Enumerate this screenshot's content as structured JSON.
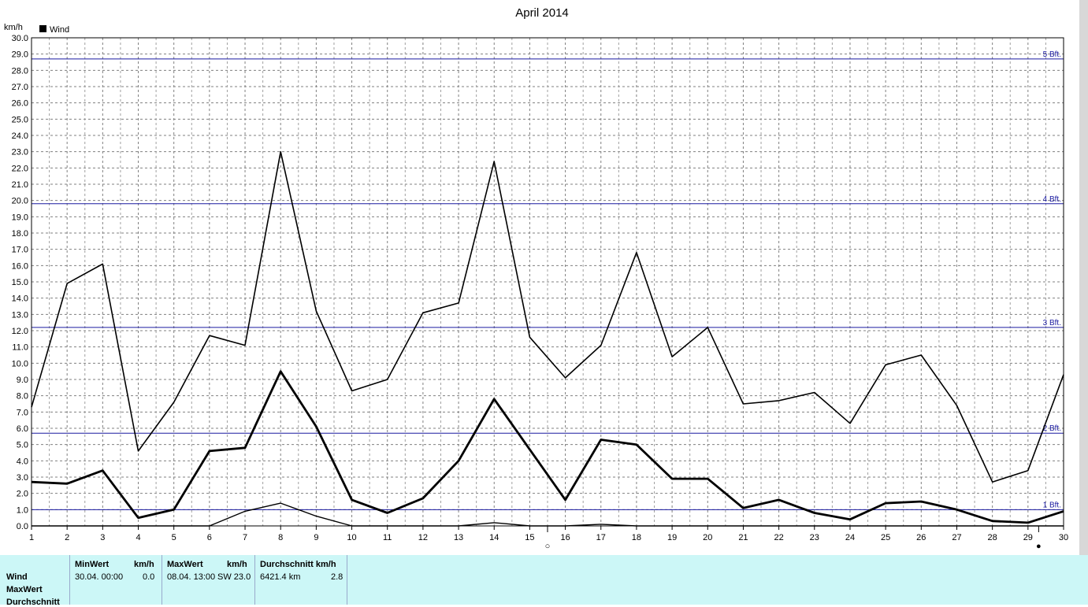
{
  "chart_data": {
    "type": "line",
    "title": "April 2014",
    "ylabel": "km/h",
    "ylim": [
      0,
      30
    ],
    "yticks": [
      "0.0",
      "1.0",
      "2.0",
      "3.0",
      "4.0",
      "5.0",
      "6.0",
      "7.0",
      "8.0",
      "9.0",
      "10.0",
      "11.0",
      "12.0",
      "13.0",
      "14.0",
      "15.0",
      "16.0",
      "17.0",
      "18.0",
      "19.0",
      "20.0",
      "21.0",
      "22.0",
      "23.0",
      "24.0",
      "25.0",
      "26.0",
      "27.0",
      "28.0",
      "29.0",
      "30.0"
    ],
    "x": [
      1,
      2,
      3,
      4,
      5,
      6,
      7,
      8,
      9,
      10,
      11,
      12,
      13,
      14,
      15,
      16,
      17,
      18,
      19,
      20,
      21,
      22,
      23,
      24,
      25,
      26,
      27,
      28,
      29,
      30
    ],
    "legend": [
      "Wind"
    ],
    "grid": true,
    "series": [
      {
        "values": [
          7.3,
          14.9,
          16.1,
          4.6,
          7.6,
          11.7,
          11.1,
          23.0,
          13.2,
          8.3,
          9.0,
          13.1,
          13.7,
          22.4,
          11.6,
          9.1,
          11.1,
          16.8,
          10.4,
          12.2,
          7.5,
          7.7,
          8.2,
          6.3,
          9.9,
          10.5,
          7.4,
          2.7,
          3.4,
          9.3
        ]
      },
      {
        "values": [
          2.7,
          2.6,
          3.4,
          0.5,
          1.0,
          4.6,
          4.8,
          9.5,
          6.1,
          1.6,
          0.8,
          1.7,
          4.0,
          7.8,
          4.7,
          1.6,
          5.3,
          5.0,
          2.9,
          2.9,
          1.1,
          1.6,
          0.8,
          0.4,
          1.4,
          1.5,
          1.0,
          0.3,
          0.2,
          0.9
        ]
      },
      {
        "values": [
          0.0,
          0.0,
          0.0,
          0.0,
          0.0,
          0.0,
          0.9,
          1.4,
          0.6,
          0.0,
          0.0,
          0.0,
          0.0,
          0.2,
          0.0,
          0.0,
          0.1,
          0.0,
          0.0,
          0.0,
          0.0,
          0.0,
          0.0,
          0.0,
          0.0,
          0.0,
          0.0,
          0.0,
          0.0,
          0.0
        ]
      }
    ],
    "reference_lines": [
      {
        "label": "1 Bft.",
        "value": 1.0
      },
      {
        "label": "2 Bft.",
        "value": 5.7
      },
      {
        "label": "3 Bft.",
        "value": 12.2
      },
      {
        "label": "4 Bft.",
        "value": 19.8
      },
      {
        "label": "5 Bft.",
        "value": 28.7
      }
    ],
    "moon_markers": [
      {
        "day": 15.5,
        "symbol": "○"
      },
      {
        "day": 29.3,
        "symbol": "●"
      }
    ]
  },
  "stats": {
    "rows": [
      "Wind",
      "MaxWert",
      "Durchschnitt"
    ],
    "min_header": "MinWert",
    "min_unit": "km/h",
    "min_date": "30.04.  00:00",
    "min_value": "0.0",
    "max_header": "MaxWert",
    "max_unit": "km/h",
    "max_date": "08.04.  13:00",
    "max_value": "SW 23.0",
    "avg_header": "Durchschnitt km/h",
    "avg_distance": "6421.4 km",
    "avg_value": "2.8"
  },
  "colors": {
    "grid": "#808080",
    "bft": "#1a1aa0",
    "panel": "#ccf7f7",
    "line": "#000000"
  }
}
